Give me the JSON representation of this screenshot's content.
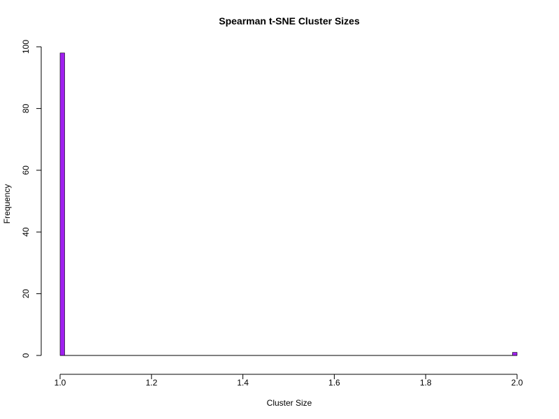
{
  "chart_data": {
    "type": "bar",
    "title": "Spearman t-SNE Cluster Sizes",
    "xlabel": "Cluster Size",
    "ylabel": "Frequency",
    "xlim": [
      1.0,
      2.0
    ],
    "ylim": [
      0,
      100
    ],
    "x_ticks": [
      "1.0",
      "1.2",
      "1.4",
      "1.6",
      "1.8",
      "2.0"
    ],
    "y_ticks": [
      "0",
      "20",
      "40",
      "60",
      "80",
      "100"
    ],
    "bin_width": 0.01,
    "bars": [
      {
        "x_start": 1.0,
        "x_end": 1.01,
        "value": 98
      },
      {
        "x_start": 1.99,
        "x_end": 2.0,
        "value": 1
      }
    ],
    "bar_color": "#A020F0",
    "grid": false
  }
}
